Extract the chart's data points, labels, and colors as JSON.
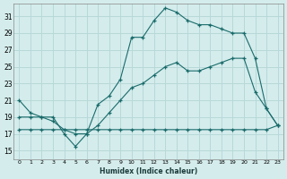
{
  "xlabel": "Humidex (Indice chaleur)",
  "background_color": "#d4ecec",
  "grid_color": "#b8d8d8",
  "line_color": "#1a6b6b",
  "x_ticks": [
    0,
    1,
    2,
    3,
    4,
    5,
    6,
    7,
    8,
    9,
    10,
    11,
    12,
    13,
    14,
    15,
    16,
    17,
    18,
    19,
    20,
    21,
    22,
    23
  ],
  "y_ticks": [
    15,
    17,
    19,
    21,
    23,
    25,
    27,
    29,
    31
  ],
  "xlim": [
    -0.5,
    23.5
  ],
  "ylim": [
    14.0,
    32.5
  ],
  "series": [
    {
      "x": [
        0,
        1,
        2,
        3,
        4,
        5,
        6,
        7,
        8,
        9,
        10,
        11,
        12,
        13,
        14,
        15,
        16,
        17,
        18,
        19,
        20,
        21,
        22,
        23
      ],
      "y": [
        21,
        19.5,
        19,
        19,
        17,
        15.5,
        17,
        20.5,
        21.5,
        23.5,
        28.5,
        28.5,
        30.5,
        32,
        31.5,
        30.5,
        30,
        30,
        29.5,
        29,
        29,
        26,
        20,
        18
      ]
    },
    {
      "x": [
        0,
        1,
        2,
        3,
        4,
        5,
        6,
        7,
        8,
        9,
        10,
        11,
        12,
        13,
        14,
        15,
        16,
        17,
        18,
        19,
        20,
        21,
        22,
        23
      ],
      "y": [
        19,
        19,
        19,
        18.5,
        17.5,
        17,
        17,
        18,
        19.5,
        21,
        22.5,
        23,
        24,
        25,
        25.5,
        24.5,
        24.5,
        25,
        25.5,
        26,
        26,
        22,
        20,
        18
      ]
    },
    {
      "x": [
        0,
        1,
        2,
        3,
        4,
        5,
        6,
        7,
        8,
        9,
        10,
        11,
        12,
        13,
        14,
        15,
        16,
        17,
        18,
        19,
        20,
        21,
        22,
        23
      ],
      "y": [
        17.5,
        17.5,
        17.5,
        17.5,
        17.5,
        17.5,
        17.5,
        17.5,
        17.5,
        17.5,
        17.5,
        17.5,
        17.5,
        17.5,
        17.5,
        17.5,
        17.5,
        17.5,
        17.5,
        17.5,
        17.5,
        17.5,
        17.5,
        18
      ]
    }
  ]
}
